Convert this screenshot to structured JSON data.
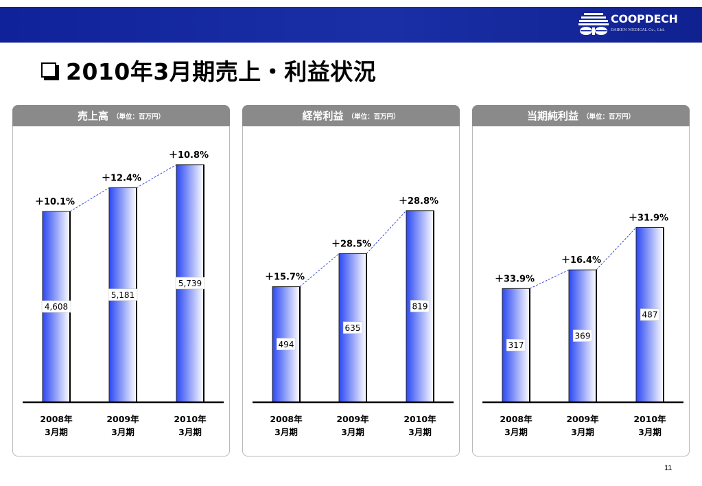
{
  "page": {
    "title": "2010年3月期売上・利益状況",
    "page_number": "11"
  },
  "logo": {
    "name": "COOPDECH",
    "sub": "DAIKEN MEDICAL Co., Ltd."
  },
  "colors": {
    "band": "#14269c",
    "panel_header": "#8a8a8a",
    "bar_dark": "#2b48f2",
    "bar_light": "#ffffff",
    "trend_line": "#3a4fd6"
  },
  "panels": [
    {
      "title": "売上高",
      "unit": "（単位：百万円）"
    },
    {
      "title": "経常利益",
      "unit": "（単位：百万円）"
    },
    {
      "title": "当期純利益",
      "unit": "（単位：百万円）"
    }
  ],
  "chart_data": [
    {
      "type": "bar",
      "title": "売上高",
      "subtitle": "（単位：百万円）",
      "categories": [
        "2008年\n3月期",
        "2009年\n3月期",
        "2010年\n3月期"
      ],
      "values": [
        4608,
        5181,
        5739
      ],
      "value_labels": [
        "4,608",
        "5,181",
        "5,739"
      ],
      "growth_labels": [
        "＋10.1%",
        "＋12.4%",
        "＋10.8%"
      ],
      "ylim": [
        0,
        6500
      ],
      "grid": false,
      "trend_line": "dashed"
    },
    {
      "type": "bar",
      "title": "経常利益",
      "subtitle": "（単位：百万円）",
      "categories": [
        "2008年\n3月期",
        "2009年\n3月期",
        "2010年\n3月期"
      ],
      "values": [
        494,
        635,
        819
      ],
      "value_labels": [
        "494",
        "635",
        "819"
      ],
      "growth_labels": [
        "＋15.7%",
        "＋28.5%",
        "＋28.8%"
      ],
      "ylim": [
        0,
        1150
      ],
      "grid": false,
      "trend_line": "dashed"
    },
    {
      "type": "bar",
      "title": "当期純利益",
      "subtitle": "（単位：百万円）",
      "categories": [
        "2008年\n3月期",
        "2009年\n3月期",
        "2010年\n3月期"
      ],
      "values": [
        317,
        369,
        487
      ],
      "value_labels": [
        "317",
        "369",
        "487"
      ],
      "growth_labels": [
        "＋33.9%",
        "＋16.4%",
        "＋31.9%"
      ],
      "ylim": [
        0,
        750
      ],
      "grid": false,
      "trend_line": "dashed"
    }
  ]
}
